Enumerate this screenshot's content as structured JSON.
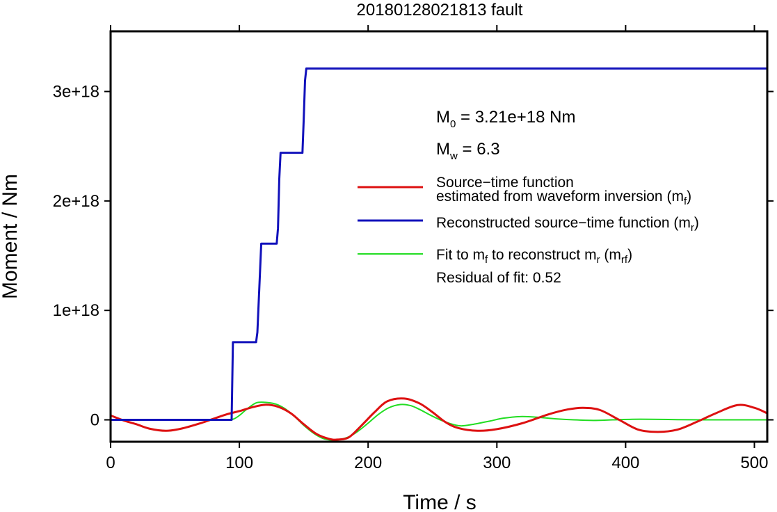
{
  "chart_data": {
    "type": "line",
    "title": "20180128021813 fault",
    "xlabel": "Time / s",
    "ylabel": "Moment / Nm",
    "xlim": [
      0,
      510
    ],
    "ylim": [
      -2e+17,
      3.55e+18
    ],
    "grid": false,
    "x_ticks": [
      {
        "value": 0,
        "label": "0"
      },
      {
        "value": 100,
        "label": "100"
      },
      {
        "value": 200,
        "label": "200"
      },
      {
        "value": 300,
        "label": "300"
      },
      {
        "value": 400,
        "label": "400"
      },
      {
        "value": 500,
        "label": "500"
      }
    ],
    "y_ticks": [
      {
        "value": 0,
        "label": "0"
      },
      {
        "value": 1e+18,
        "label": "1e+18"
      },
      {
        "value": 2e+18,
        "label": "2e+18"
      },
      {
        "value": 3e+18,
        "label": "3e+18"
      }
    ],
    "annotations": {
      "m0": {
        "base": "M",
        "sub": "0",
        "rest": " = 3.21e+18 Nm"
      },
      "mw": {
        "base": "M",
        "sub": "w",
        "rest": " = 6.3"
      },
      "residual": "Residual of fit: 0.52"
    },
    "legend_position": "top-right",
    "legend": [
      {
        "color": "#dd1111",
        "lines": [
          {
            "text": "Source−time function"
          },
          {
            "text": "estimated from waveform inversion (m",
            "sub": "f",
            "after": ")"
          }
        ]
      },
      {
        "color": "#1111bb",
        "lines": [
          {
            "text": "Reconstructed source−time function (m",
            "sub": "r",
            "after": ")"
          }
        ]
      },
      {
        "color": "#22dd22",
        "lines": [
          {
            "text": "Fit to m",
            "sub": "f",
            "text2": " to reconstruct m",
            "sub2": "r",
            "text3": " (m",
            "sub3": "rf",
            "after": ")"
          }
        ]
      }
    ],
    "series": [
      {
        "role": "reconstructed",
        "color": "#1111bb",
        "x": [
          0,
          94,
          95,
          113,
          114,
          117,
          118,
          129,
          130,
          131,
          132,
          149,
          150,
          151,
          152,
          510
        ],
        "y": [
          0,
          0,
          7.1e+17,
          7.1e+17,
          8e+17,
          1.61e+18,
          1.61e+18,
          1.61e+18,
          1.75e+18,
          2.2e+18,
          2.44e+18,
          2.44e+18,
          2.75e+18,
          3.1e+18,
          3.21e+18,
          3.21e+18
        ]
      },
      {
        "role": "inversion",
        "color": "#dd1111",
        "x": [
          0,
          10,
          20,
          30,
          43,
          55,
          70,
          80,
          90,
          100,
          110,
          120,
          130,
          140,
          150,
          160,
          170,
          176,
          185,
          195,
          205,
          215,
          228,
          240,
          250,
          260,
          270,
          285,
          300,
          320,
          340,
          355,
          367,
          380,
          395,
          410,
          425,
          440,
          455,
          470,
          487,
          500,
          510
        ],
        "y": [
          4e+16,
          -5000000000000000.0,
          -4e+16,
          -8e+16,
          -1e+17,
          -8e+16,
          -3e+16,
          1e+16,
          5e+16,
          8e+16,
          1.15e+17,
          1.38e+17,
          1.2e+17,
          6e+16,
          -4e+16,
          -1.3e+17,
          -1.75e+17,
          -1.8e+17,
          -1.6e+17,
          -5e+16,
          7e+16,
          1.7e+17,
          1.95e+17,
          1.5e+17,
          7e+16,
          -2e+16,
          -7.5e+16,
          -1e+17,
          -8.5e+16,
          -3e+16,
          5e+16,
          9.5e+16,
          1.1e+17,
          9e+16,
          0.0,
          -9e+16,
          -1.1e+17,
          -9e+16,
          -2e+16,
          6e+16,
          1.35e+17,
          1.1e+17,
          6e+16
        ]
      },
      {
        "role": "fit",
        "color": "#22dd22",
        "x": [
          0,
          80,
          92,
          96,
          100,
          106,
          113,
          120,
          128,
          135,
          143,
          150,
          158,
          165,
          172,
          178,
          185,
          192,
          200,
          208,
          216,
          225,
          233,
          240,
          248,
          256,
          264,
          272,
          282,
          295,
          305,
          318,
          330,
          345,
          360,
          375,
          390,
          405,
          420,
          440,
          460,
          480,
          510
        ],
        "y": [
          0,
          0,
          0,
          1e+16,
          4e+16,
          1e+17,
          1.55e+17,
          1.6e+17,
          1.45e+17,
          1.05e+17,
          3e+16,
          -5e+16,
          -1.25e+17,
          -1.7e+17,
          -1.85e+17,
          -1.8e+17,
          -1.55e+17,
          -1.05e+17,
          -3e+16,
          5e+16,
          1.1e+17,
          1.4e+17,
          1.3e+17,
          9.5e+16,
          4.5e+16,
          0.0,
          -3.5e+16,
          -5.5e+16,
          -4e+16,
          -1e+16,
          1.5e+16,
          3e+16,
          2.5e+16,
          1e+16,
          0.0,
          -5000000000000000.0,
          0.0,
          5000000000000000.0,
          5000000000000000.0,
          2000000000000000.0,
          0.0,
          0.0,
          0.0
        ]
      }
    ]
  }
}
